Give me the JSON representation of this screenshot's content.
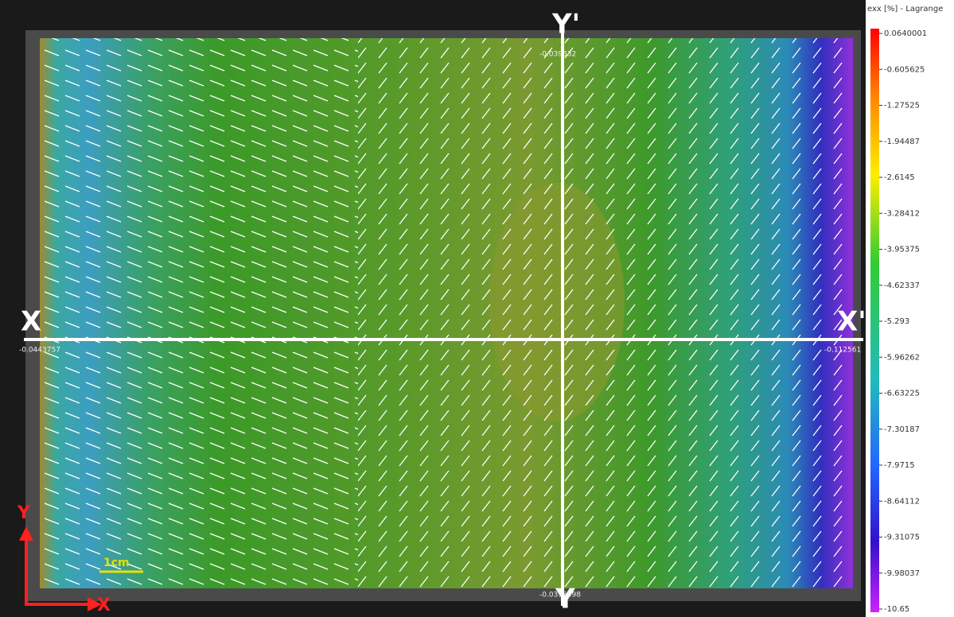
{
  "colorbar": {
    "title": "exx [%] - Lagrange",
    "labels": [
      "0.0640001",
      "-0.605625",
      "-1.27525",
      "-1.94487",
      "-2.6145",
      "-3.28412",
      "-3.95375",
      "-4.62337",
      "-5.293",
      "-5.96262",
      "-6.63225",
      "-7.30187",
      "-7.9715",
      "-8.64112",
      "-9.31075",
      "-9.98037",
      "-10.65"
    ]
  },
  "sections": {
    "x_start": "X",
    "x_end": "X'",
    "y_start": "Y",
    "y_end": "Y'",
    "x_start_value": "-0.0443757",
    "x_end_value": "-0.112561",
    "y_end_value": "-0.039332",
    "y_start_value": "-0.0395598"
  },
  "scale_bar": "1cm",
  "axes": {
    "x": "X",
    "y": "Y"
  }
}
